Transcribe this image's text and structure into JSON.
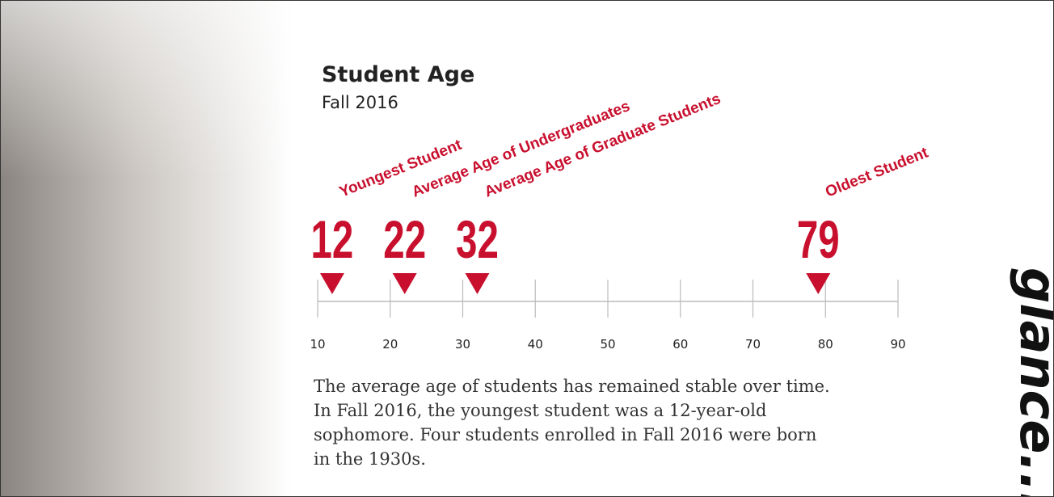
{
  "chart_data": {
    "type": "timeline",
    "title": "Student Age",
    "subtitle": "Fall 2016",
    "categories": [
      "Youngest Student",
      "Average Age of Undergraduates",
      "Average Age of Graduate Students",
      "Oldest Student"
    ],
    "values": [
      12,
      22,
      32,
      79
    ],
    "color": "#c8102e",
    "xlim": [
      10,
      90
    ],
    "xticks": [
      10,
      20,
      30,
      40,
      50,
      60,
      70,
      80,
      90
    ]
  },
  "note": "The average age of students has remained stable over time. In Fall 2016, the youngest student was a 12-year-old sophomore. Four students enrolled in Fall 2016 were born in the 1930s.",
  "side_text": "glance..."
}
